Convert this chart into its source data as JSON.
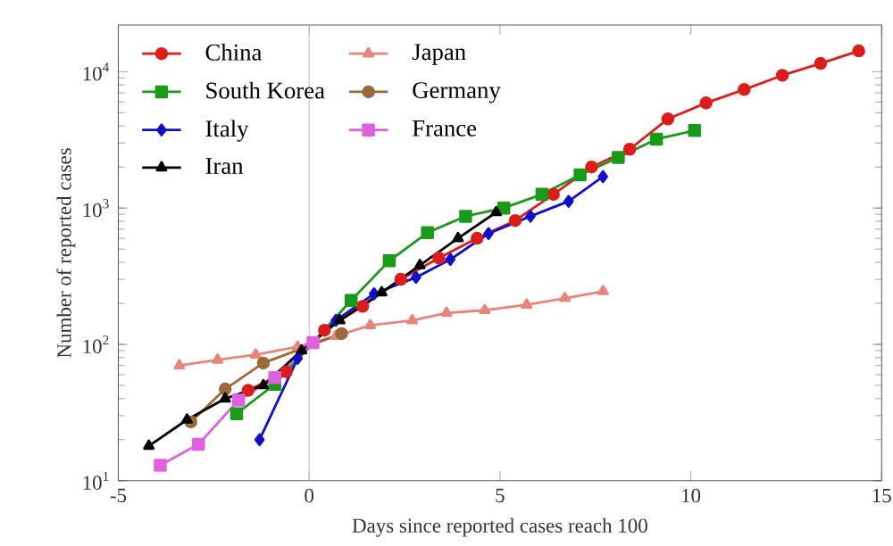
{
  "chart_data": {
    "type": "line",
    "xlabel": "Days since reported cases reach 100",
    "ylabel": "Number of reported cases",
    "log": "y",
    "xlim": [
      -5,
      15
    ],
    "ylim": [
      10,
      22000
    ],
    "xticks": [
      -5,
      0,
      5,
      10,
      15
    ],
    "yticks": [
      {
        "value": 10,
        "label": "10$^{1}$"
      },
      {
        "value": 100,
        "label": "10$^{2}$"
      },
      {
        "value": 1000,
        "label": "10$^{3}$"
      },
      {
        "value": 10000,
        "label": "10$^{4}$"
      }
    ],
    "legend": "top left",
    "grid": false,
    "ref_lines": [
      {
        "axis": "x",
        "value": 0,
        "color": "#bbbbbb"
      }
    ],
    "series": [
      {
        "name": "China",
        "color": "#dd1c1c",
        "marker": "circle",
        "x": [
          -1.6,
          -0.6,
          0.4,
          1.4,
          2.4,
          3.4,
          4.4,
          5.4,
          6.4,
          7.4,
          8.4,
          9.4,
          10.4,
          11.4,
          12.4,
          13.4,
          14.4
        ],
        "values": [
          46,
          63,
          127,
          190,
          300,
          430,
          600,
          810,
          1260,
          2000,
          2700,
          4500,
          5900,
          7400,
          9400,
          11500,
          14200
        ]
      },
      {
        "name": "Japan",
        "color": "#e8857a",
        "marker": "triangle",
        "x": [
          -3.4,
          -2.4,
          -1.4,
          -0.3,
          0.7,
          1.6,
          2.7,
          3.6,
          4.6,
          5.7,
          6.7,
          7.7
        ],
        "values": [
          70,
          77,
          84,
          96,
          115,
          138,
          150,
          170,
          178,
          195,
          218,
          245
        ]
      },
      {
        "name": "South Korea",
        "color": "#1a9a1a",
        "marker": "square",
        "x": [
          -1.9,
          -0.9,
          0.1,
          1.1,
          2.1,
          3.1,
          4.1,
          5.1,
          6.1,
          7.1,
          8.1,
          9.1,
          10.1
        ],
        "values": [
          31,
          51,
          null,
          210,
          410,
          660,
          870,
          1000,
          1260,
          1750,
          2350,
          3200,
          3700
        ]
      },
      {
        "name": "Germany",
        "color": "#9c6a3a",
        "marker": "circle",
        "x": [
          -3.1,
          -2.2,
          -1.2,
          -0.2,
          0.85
        ],
        "values": [
          27,
          47,
          73,
          null,
          120
        ]
      },
      {
        "name": "Italy",
        "color": "#1010c8",
        "marker": "diamond",
        "x": [
          -1.3,
          -0.3,
          0.7,
          1.7,
          2.8,
          3.7,
          4.7,
          5.8,
          6.8,
          7.7
        ],
        "values": [
          20,
          79,
          150,
          235,
          310,
          420,
          650,
          870,
          1120,
          1700
        ]
      },
      {
        "name": "France",
        "color": "#e060e0",
        "marker": "square",
        "x": [
          -3.9,
          -2.9,
          -1.85,
          -0.9,
          0.1
        ],
        "values": [
          13,
          18.5,
          39,
          57,
          103
        ]
      },
      {
        "name": "Iran",
        "color": "#000000",
        "marker": "triangle",
        "x": [
          -4.2,
          -3.2,
          -2.2,
          -1.2,
          -0.2,
          0.8,
          1.9,
          2.9,
          3.9,
          4.9
        ],
        "values": [
          18,
          28,
          40,
          50,
          90,
          150,
          240,
          380,
          600,
          930
        ]
      }
    ]
  }
}
